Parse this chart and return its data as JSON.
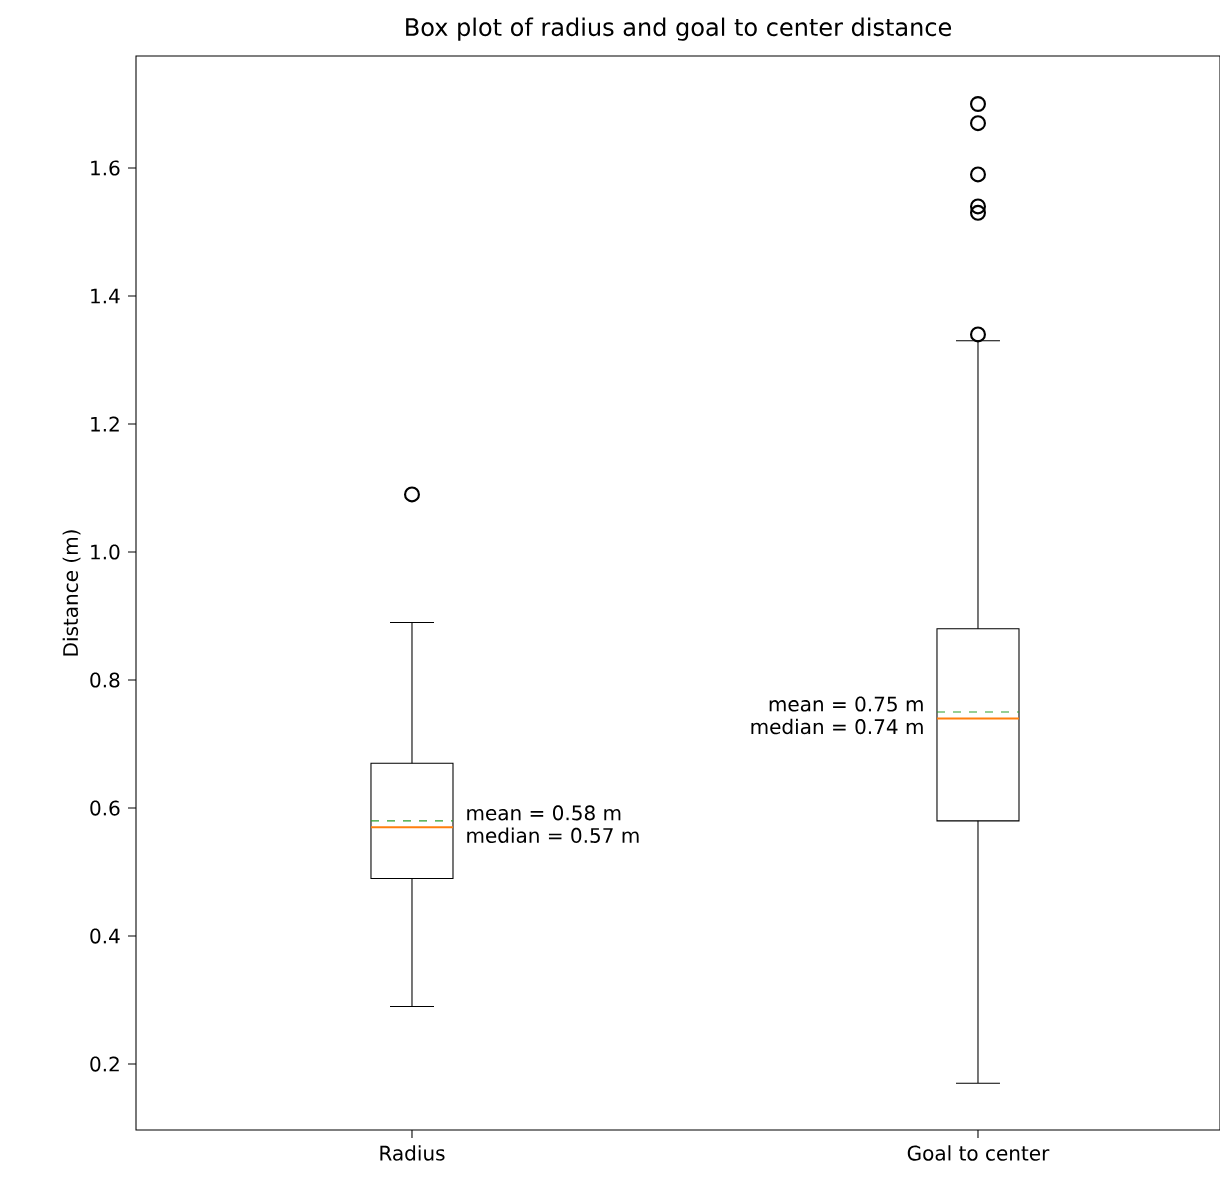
{
  "chart_data": {
    "type": "box",
    "title": "Box plot of radius and goal to center distance",
    "ylabel": "Distance (m)",
    "categories": [
      "Radius",
      "Goal to center"
    ],
    "boxes": [
      {
        "low": 0.29,
        "q1": 0.49,
        "median": 0.57,
        "q3": 0.67,
        "high": 0.89,
        "mean": 0.58,
        "outliers": [
          1.09
        ]
      },
      {
        "low": 0.17,
        "q1": 0.58,
        "median": 0.74,
        "q3": 0.88,
        "high": 1.33,
        "mean": 0.75,
        "outliers": [
          1.7,
          1.67,
          1.59,
          1.54,
          1.53,
          1.34
        ]
      }
    ],
    "ylim": [
      0.097,
      1.775
    ],
    "yticks": [
      0.2,
      0.4,
      0.6,
      0.8,
      {
        "value": 1.0,
        "label": "1.0"
      },
      1.2,
      1.4,
      1.6
    ],
    "annotations": [
      "mean = 0.58 m",
      "median = 0.57 m",
      "mean = 0.75 m",
      "median = 0.74 m"
    ]
  }
}
